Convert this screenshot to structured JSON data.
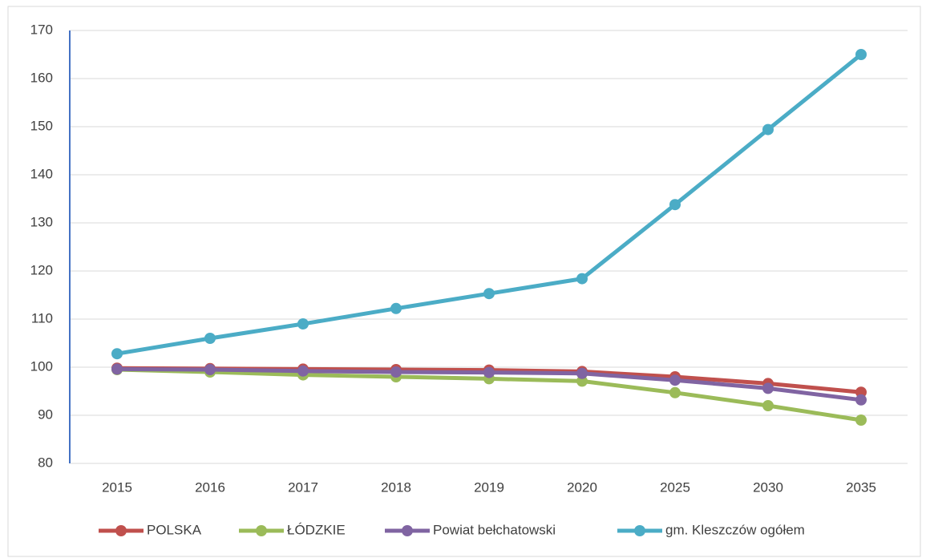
{
  "chart_data": {
    "type": "line",
    "categories": [
      "2015",
      "2016",
      "2017",
      "2018",
      "2019",
      "2020",
      "2025",
      "2030",
      "2035"
    ],
    "series": [
      {
        "name": "POLSKA",
        "color": "#c0504d",
        "values": [
          99.8,
          99.7,
          99.6,
          99.5,
          99.4,
          99.1,
          98.0,
          96.6,
          94.8
        ]
      },
      {
        "name": "ŁÓDZKIE",
        "color": "#9bbb59",
        "values": [
          99.5,
          99.0,
          98.4,
          98.0,
          97.6,
          97.1,
          94.7,
          92.0,
          89.0
        ]
      },
      {
        "name": "Powiat bełchatowski",
        "color": "#8064a2",
        "values": [
          99.6,
          99.5,
          99.2,
          99.0,
          98.9,
          98.7,
          97.3,
          95.6,
          93.2
        ]
      },
      {
        "name": "gm. Kleszczów ogółem",
        "color": "#4bacc6",
        "values": [
          102.8,
          106.0,
          109.0,
          112.2,
          115.3,
          118.4,
          133.8,
          149.4,
          165.0
        ]
      }
    ],
    "ylim": [
      80,
      170
    ],
    "yticks": [
      80,
      90,
      100,
      110,
      120,
      130,
      140,
      150,
      160,
      170
    ],
    "grid": true,
    "legend": "bottom"
  }
}
